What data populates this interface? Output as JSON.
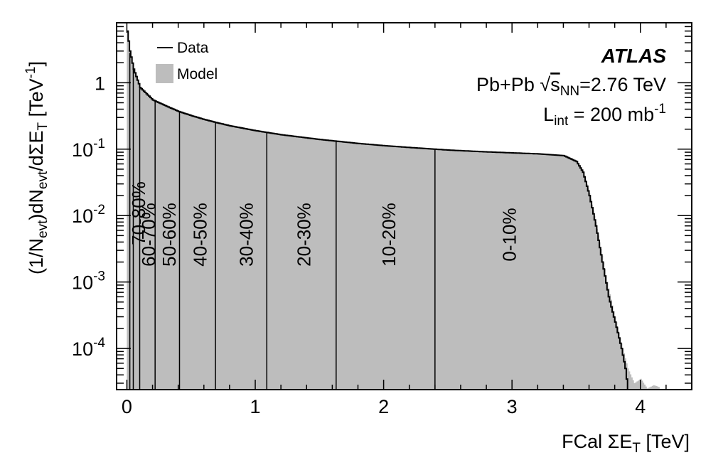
{
  "chart_data": {
    "type": "area",
    "experiment": "ATLAS",
    "system": {
      "collision": "Pb+Pb",
      "sqrt_symbol": "√",
      "s_letter": "s",
      "s_subscript": "NN",
      "energy": "=2.76 TeV"
    },
    "luminosity": {
      "symbol": "L",
      "subscript": "int",
      "value": " = 200 mb",
      "superscript": "-1"
    },
    "xlabel": "FCal ΣE",
    "xlabel_subscript": "T",
    "xlabel_unit": " [TeV]",
    "ylabel_parts": {
      "p1": "(1/N",
      "p1_sub": "evt",
      "p2": ")dN",
      "p2_sub": "evt",
      "p3": "/dΣE",
      "p3_sub": "T",
      "p4": " [TeV",
      "p4_sup": "-1",
      "p5": "]"
    },
    "x_ticks": [
      "0",
      "1",
      "2",
      "3",
      "4"
    ],
    "x_tick_values": [
      0,
      1,
      2,
      3,
      4
    ],
    "y_ticks": [
      {
        "value": 1,
        "base": "1",
        "exp": ""
      },
      {
        "value": 0.1,
        "base": "10",
        "exp": "-1"
      },
      {
        "value": 0.01,
        "base": "10",
        "exp": "-2"
      },
      {
        "value": 0.001,
        "base": "10",
        "exp": "-3"
      },
      {
        "value": 0.0001,
        "base": "10",
        "exp": "-4"
      }
    ],
    "xlim": [
      -0.08,
      4.4
    ],
    "ylim": [
      2.4e-05,
      8
    ],
    "y_scale": "log",
    "legend": [
      {
        "name": "Data",
        "style": "line",
        "color": "#000000"
      },
      {
        "name": "Model",
        "style": "fill",
        "color": "#bdbdbd"
      }
    ],
    "legend_position": "top-left",
    "series": [
      {
        "name": "Data",
        "x": [
          0.0,
          0.02,
          0.05,
          0.1,
          0.2,
          0.3,
          0.4,
          0.5,
          0.6,
          0.7,
          0.8,
          1.0,
          1.2,
          1.5,
          1.8,
          2.0,
          2.2,
          2.5,
          2.8,
          3.0,
          3.2,
          3.4,
          3.5,
          3.55,
          3.6,
          3.65,
          3.7,
          3.75,
          3.8,
          3.85,
          3.88,
          3.9
        ],
        "y": [
          6.0,
          3.0,
          1.6,
          0.85,
          0.55,
          0.45,
          0.37,
          0.32,
          0.28,
          0.25,
          0.225,
          0.19,
          0.165,
          0.14,
          0.122,
          0.113,
          0.106,
          0.097,
          0.091,
          0.088,
          0.085,
          0.08,
          0.065,
          0.045,
          0.02,
          0.007,
          0.002,
          0.0006,
          0.00025,
          0.0001,
          5e-05,
          2.4e-05
        ]
      },
      {
        "name": "Model",
        "x": [
          0.0,
          0.02,
          0.05,
          0.1,
          0.2,
          0.3,
          0.4,
          0.5,
          0.6,
          0.7,
          0.8,
          1.0,
          1.2,
          1.5,
          1.8,
          2.0,
          2.2,
          2.5,
          2.8,
          3.0,
          3.2,
          3.4,
          3.5,
          3.55,
          3.6,
          3.65,
          3.7,
          3.75,
          3.8,
          3.85,
          3.9,
          3.95,
          4.0,
          4.05,
          4.1,
          4.15
        ],
        "y": [
          6.0,
          3.0,
          1.6,
          0.85,
          0.55,
          0.45,
          0.37,
          0.32,
          0.28,
          0.25,
          0.225,
          0.19,
          0.165,
          0.14,
          0.122,
          0.113,
          0.106,
          0.097,
          0.091,
          0.088,
          0.085,
          0.08,
          0.066,
          0.047,
          0.022,
          0.008,
          0.0025,
          0.0008,
          0.0003,
          0.00012,
          5e-05,
          3e-05,
          3.5e-05,
          2.5e-05,
          2.8e-05,
          2.6e-05
        ]
      }
    ],
    "centrality_boundaries": [
      0.023,
      0.05,
      0.1,
      0.22,
      0.41,
      0.69,
      1.09,
      1.63,
      2.4
    ],
    "centrality_bins": [
      {
        "label": "70-80%",
        "x": 0.12
      },
      {
        "label": "60-70%",
        "x": 0.17
      },
      {
        "label": "50-60%",
        "x": 0.33
      },
      {
        "label": "40-50%",
        "x": 0.57
      },
      {
        "label": "30-40%",
        "x": 0.93
      },
      {
        "label": "20-30%",
        "x": 1.38
      },
      {
        "label": "10-20%",
        "x": 2.04
      },
      {
        "label": "0-10%",
        "x": 2.98
      }
    ]
  }
}
